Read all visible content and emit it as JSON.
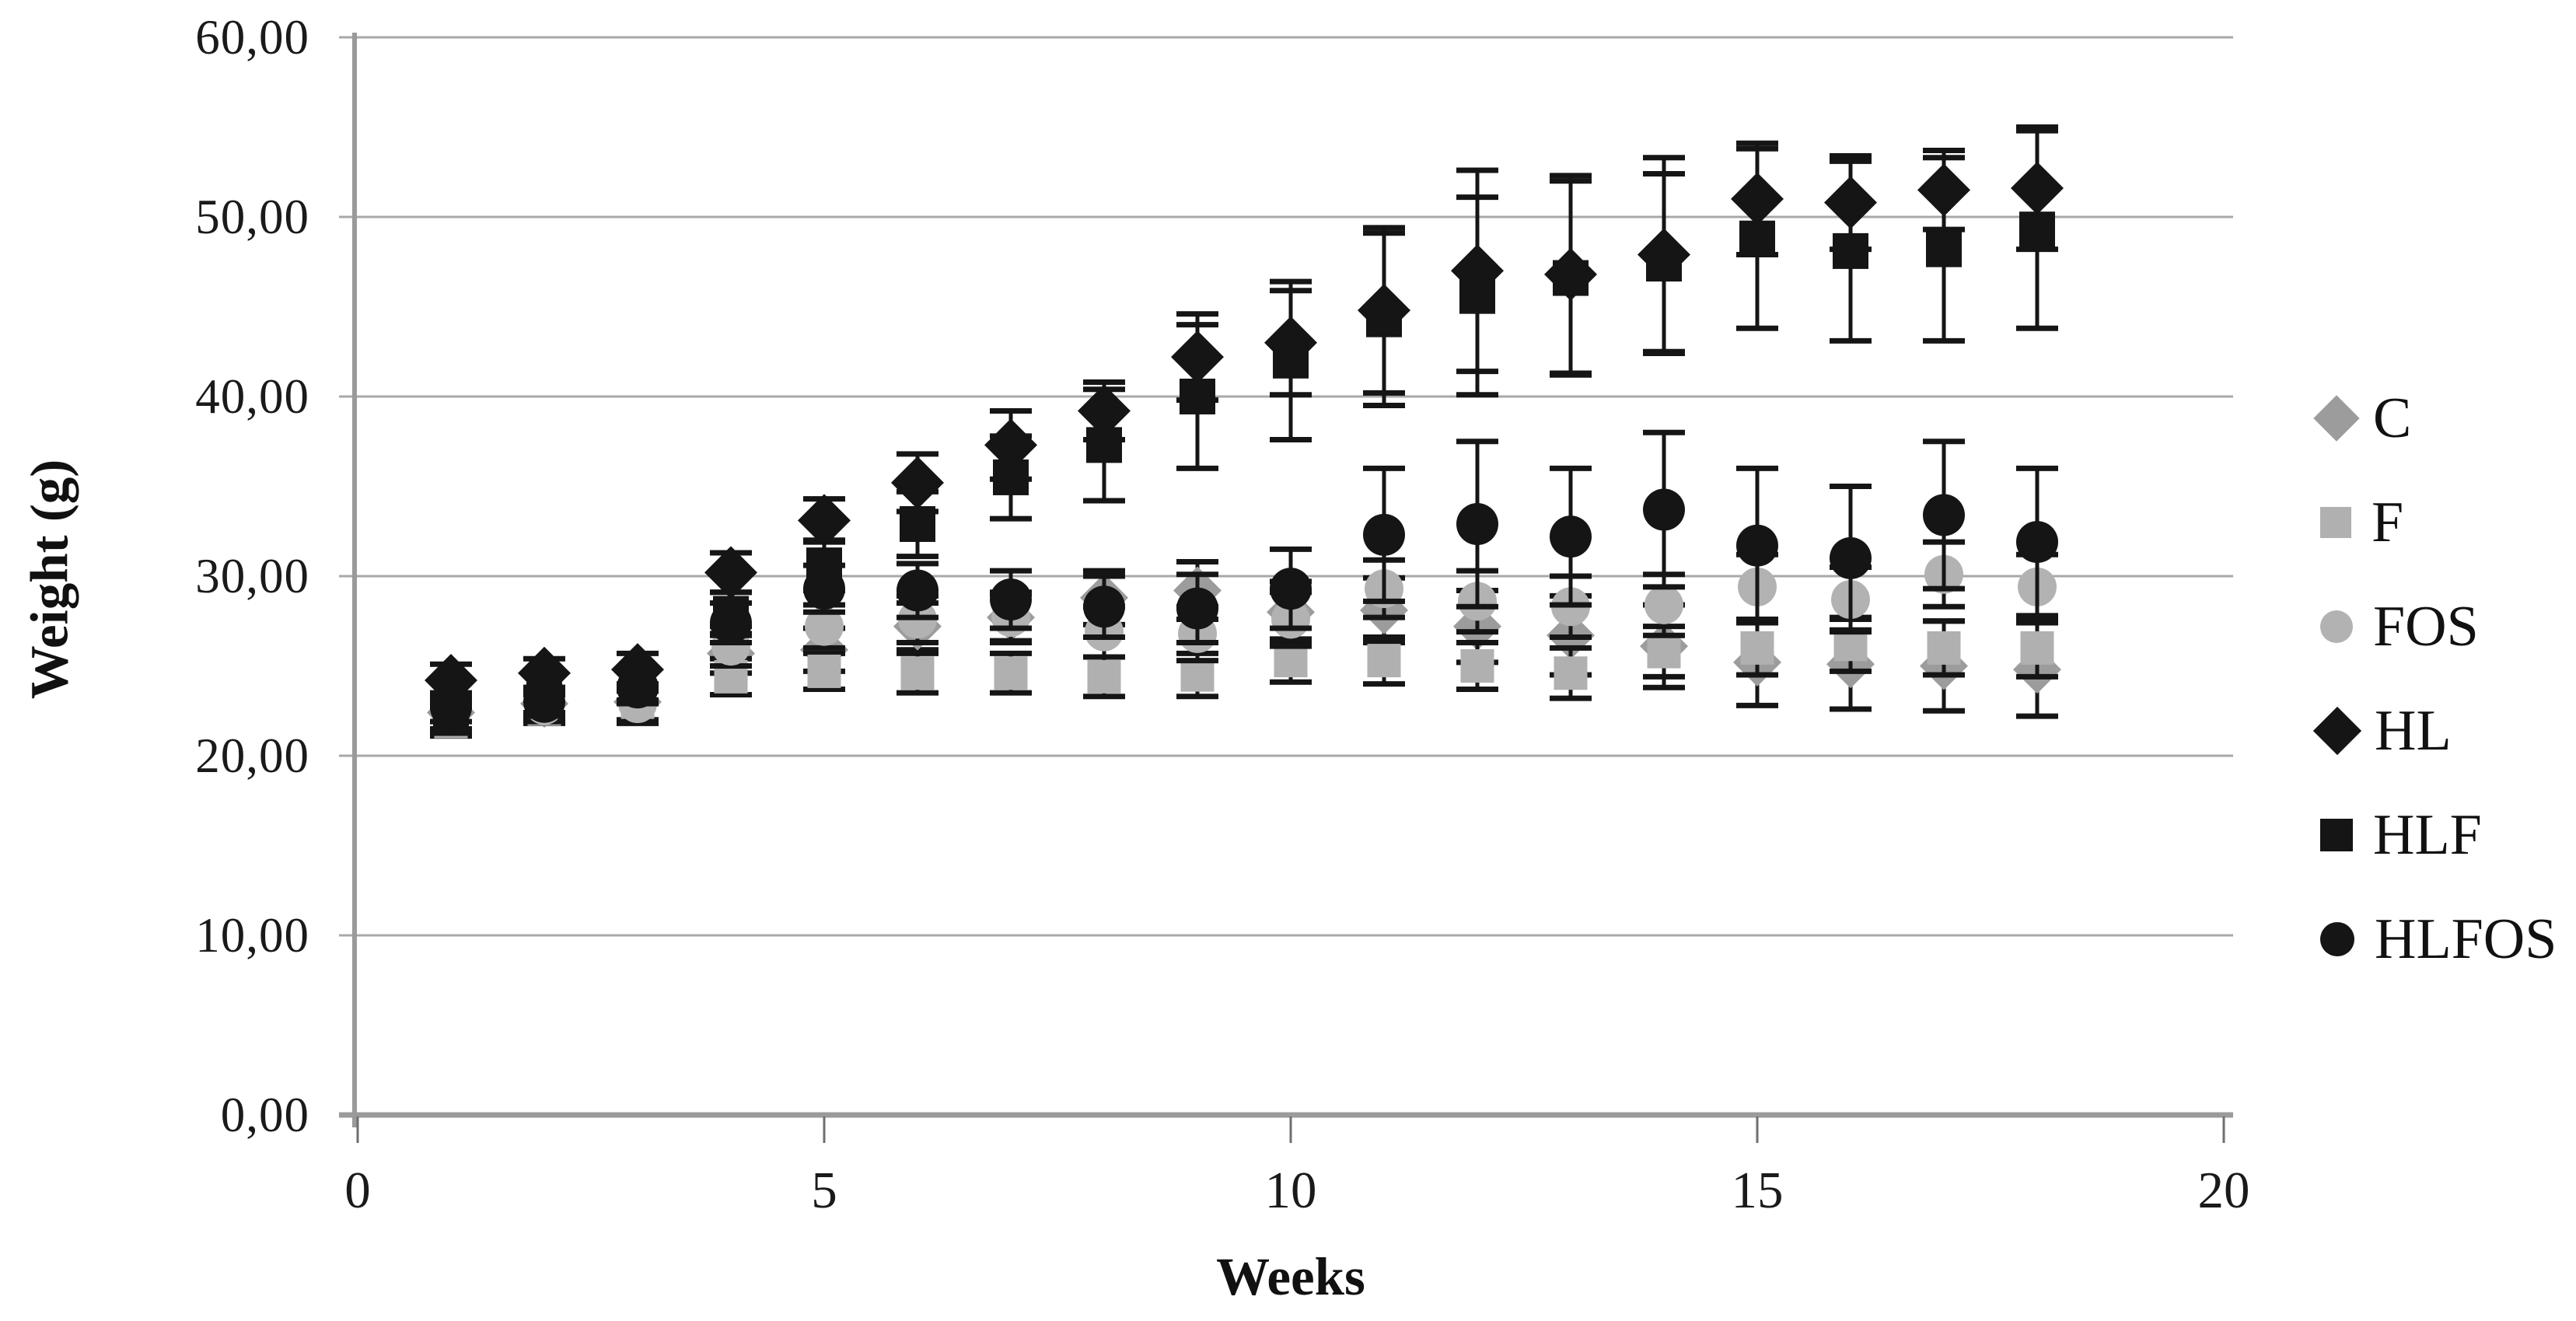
{
  "chart_data": {
    "type": "scatter",
    "title": "",
    "xlabel": "Weeks",
    "ylabel": "Weight (g)",
    "xlim": [
      0,
      20
    ],
    "ylim": [
      0,
      60
    ],
    "grid": "horizontal",
    "legend_position": "right",
    "x_ticks": [
      0,
      5,
      10,
      15,
      20
    ],
    "x_tick_labels": [
      "0",
      "5",
      "10",
      "15",
      "20"
    ],
    "y_ticks": [
      0,
      10,
      20,
      30,
      40,
      50,
      60
    ],
    "y_tick_labels": [
      "0,00",
      "10,00",
      "20,00",
      "30,00",
      "40,00",
      "50,00",
      "60,00"
    ],
    "x": [
      1,
      2,
      3,
      4,
      5,
      6,
      7,
      8,
      9,
      10,
      11,
      12,
      13,
      14,
      15,
      16,
      17,
      18
    ],
    "error_bar_color": "#151515",
    "series": [
      {
        "name": "C",
        "marker": "diamond",
        "color": "#9c9c9c",
        "values": [
          22.4,
          22.9,
          23.0,
          25.7,
          25.9,
          27.2,
          27.7,
          28.8,
          29.2,
          28.0,
          28.1,
          27.2,
          26.7,
          26.1,
          25.2,
          25.1,
          25.0,
          24.8
        ],
        "errors": [
          0.9,
          0.9,
          1.0,
          1.1,
          1.2,
          1.3,
          1.4,
          1.5,
          1.6,
          1.7,
          1.8,
          2.0,
          2.2,
          2.3,
          2.4,
          2.5,
          2.5,
          2.6
        ]
      },
      {
        "name": "F",
        "marker": "square",
        "color": "#b0b0b0",
        "values": [
          21.9,
          22.6,
          22.7,
          24.4,
          24.7,
          24.6,
          24.6,
          24.4,
          24.5,
          25.3,
          25.3,
          25.0,
          24.6,
          25.8,
          26.0,
          26.2,
          26.0,
          26.0
        ],
        "errors": [
          0.8,
          0.8,
          0.9,
          1.0,
          1.0,
          1.1,
          1.1,
          1.1,
          1.2,
          1.2,
          1.3,
          1.3,
          1.4,
          1.4,
          1.5,
          1.5,
          1.5,
          1.6
        ]
      },
      {
        "name": "FOS",
        "marker": "circle",
        "color": "#b2b2b2",
        "values": [
          22.2,
          22.8,
          22.9,
          26.1,
          27.2,
          27.6,
          27.7,
          26.9,
          26.8,
          27.6,
          29.3,
          28.6,
          28.3,
          28.4,
          29.4,
          28.7,
          30.1,
          29.4
        ],
        "errors": [
          0.9,
          0.9,
          1.0,
          1.1,
          1.2,
          1.3,
          1.3,
          1.4,
          1.5,
          1.5,
          1.6,
          1.7,
          1.7,
          1.7,
          1.8,
          1.8,
          1.8,
          1.8
        ]
      },
      {
        "name": "HL",
        "marker": "diamond",
        "color": "#151515",
        "values": [
          24.2,
          24.6,
          24.8,
          30.2,
          33.1,
          35.2,
          37.3,
          39.2,
          42.2,
          43.0,
          44.8,
          47.0,
          46.8,
          47.9,
          51.0,
          50.8,
          51.5,
          51.6
        ],
        "errors": [
          0.9,
          0.8,
          0.9,
          1.1,
          1.2,
          1.6,
          1.9,
          1.6,
          2.4,
          2.9,
          4.6,
          5.6,
          5.5,
          5.4,
          3.1,
          2.6,
          2.2,
          3.4
        ]
      },
      {
        "name": "HLF",
        "marker": "square",
        "color": "#151515",
        "values": [
          22.1,
          23.1,
          23.9,
          27.9,
          30.6,
          32.9,
          35.5,
          37.3,
          40.0,
          42.0,
          44.3,
          45.6,
          46.6,
          47.4,
          48.8,
          48.1,
          48.2,
          49.3
        ],
        "errors": [
          0.8,
          0.7,
          0.8,
          1.2,
          1.4,
          1.8,
          2.3,
          3.1,
          4.0,
          4.4,
          4.8,
          5.5,
          5.4,
          5.0,
          5.0,
          5.0,
          5.1,
          5.5
        ]
      },
      {
        "name": "HLFOS",
        "marker": "circle",
        "color": "#151515",
        "values": [
          22.7,
          23.0,
          23.8,
          27.4,
          29.3,
          29.2,
          28.7,
          28.3,
          28.2,
          29.3,
          32.3,
          32.9,
          32.2,
          33.7,
          31.7,
          31.0,
          33.4,
          31.9
        ],
        "errors": [
          0.8,
          0.8,
          0.9,
          1.1,
          1.3,
          1.5,
          1.6,
          1.7,
          1.9,
          2.2,
          3.7,
          4.6,
          3.8,
          4.3,
          4.3,
          4.0,
          4.1,
          4.1
        ]
      }
    ]
  }
}
